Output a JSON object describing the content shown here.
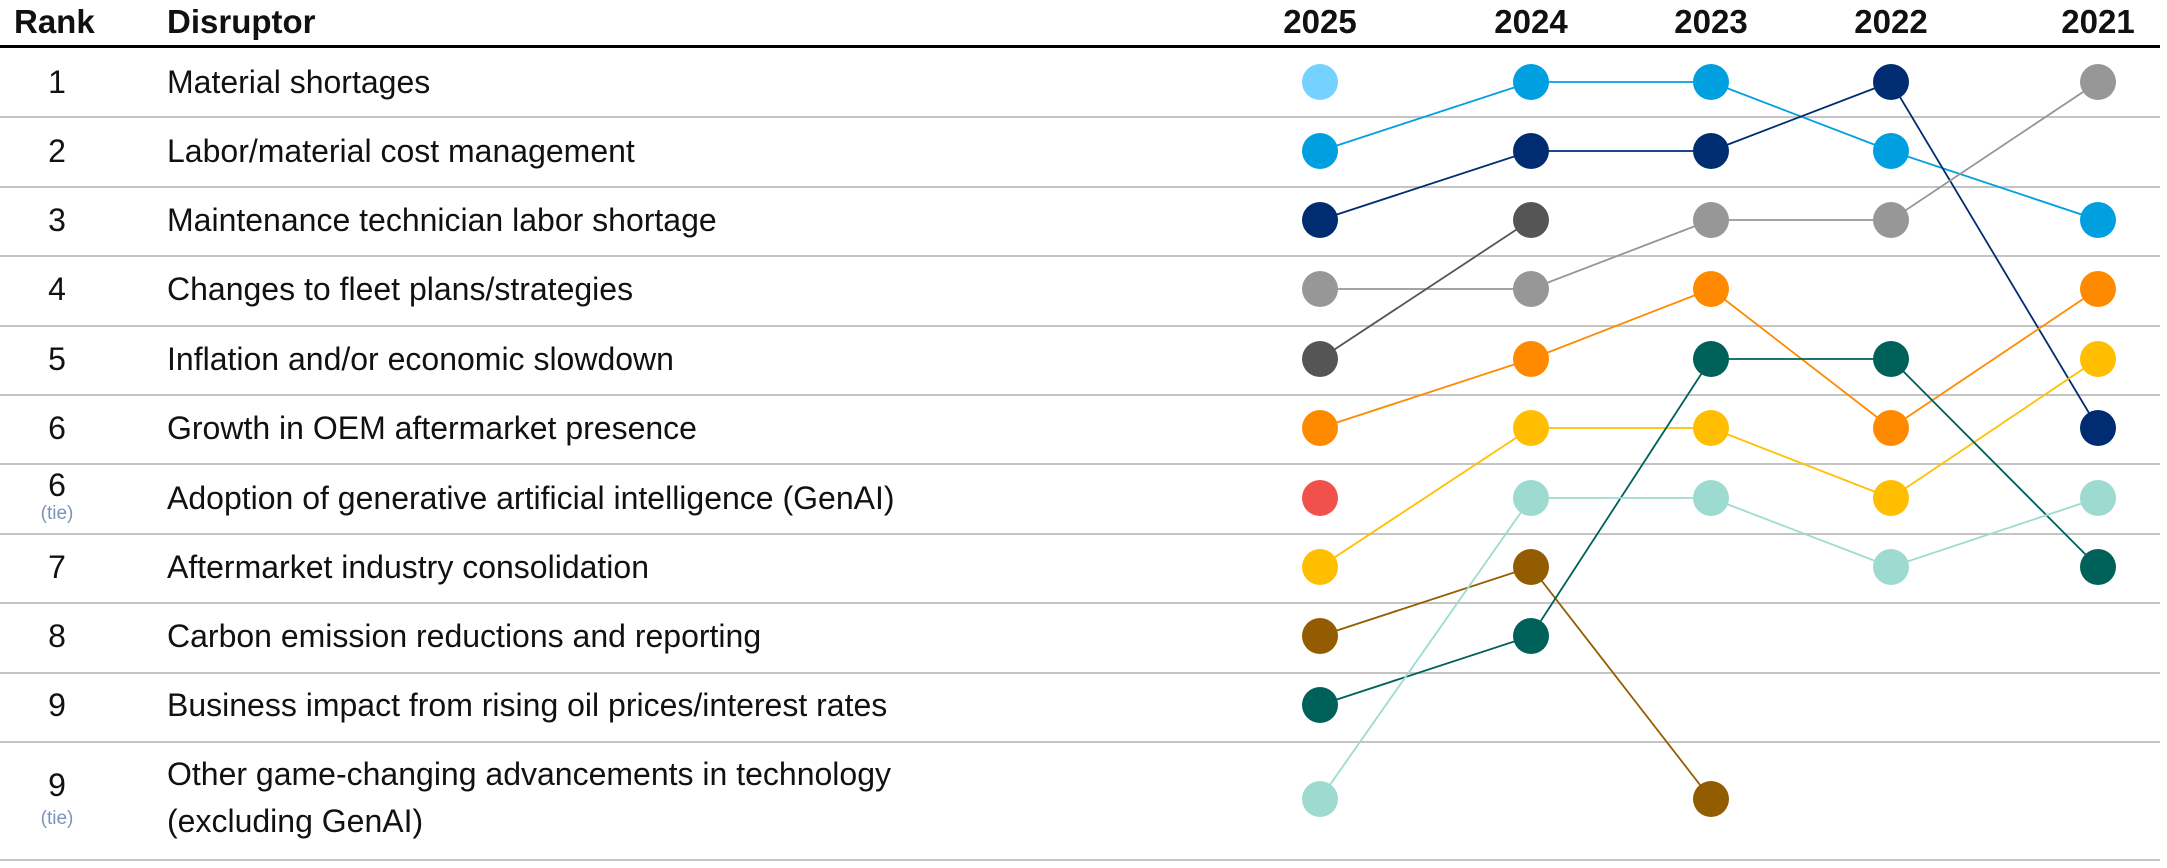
{
  "header": {
    "rank": "Rank",
    "disruptor": "Disruptor"
  },
  "rows": [
    {
      "rank": "1",
      "tie": "",
      "label": "Material shortages"
    },
    {
      "rank": "2",
      "tie": "",
      "label": "Labor/material cost management"
    },
    {
      "rank": "3",
      "tie": "",
      "label": "Maintenance technician labor shortage"
    },
    {
      "rank": "4",
      "tie": "",
      "label": "Changes to fleet plans/strategies"
    },
    {
      "rank": "5",
      "tie": "",
      "label": "Inflation and/or economic slowdown"
    },
    {
      "rank": "6",
      "tie": "",
      "label": "Growth in OEM aftermarket presence"
    },
    {
      "rank": "6",
      "tie": "(tie)",
      "label": "Adoption of generative artificial intelligence (GenAI)"
    },
    {
      "rank": "7",
      "tie": "",
      "label": "Aftermarket industry consolidation"
    },
    {
      "rank": "8",
      "tie": "",
      "label": "Carbon emission reductions and reporting"
    },
    {
      "rank": "9",
      "tie": "",
      "label": "Business impact from rising oil prices/interest rates"
    },
    {
      "rank": "9",
      "tie": "(tie)",
      "label": "Other game-changing advancements in technology",
      "label2": "(excluding GenAI)"
    }
  ],
  "chart_data": {
    "type": "bump",
    "years": [
      "2025",
      "2024",
      "2023",
      "2022",
      "2021"
    ],
    "position_note_units": "row in 2025 ranking table (1 = top row, 11 = bottom row); null = not ranked",
    "series": [
      {
        "disruptor": "Material shortages",
        "color": "#75D1FF",
        "positions": [
          1,
          null,
          null,
          null,
          null
        ]
      },
      {
        "disruptor": "Labor/material cost management",
        "color": "#009FE0",
        "positions": [
          2,
          1,
          1,
          2,
          3
        ]
      },
      {
        "disruptor": "Maintenance technician labor shortage",
        "color": "#002D72",
        "positions": [
          3,
          2,
          2,
          1,
          6
        ]
      },
      {
        "disruptor": "Changes to fleet plans/strategies",
        "color": "#979797",
        "positions": [
          4,
          4,
          3,
          3,
          1
        ]
      },
      {
        "disruptor": "Inflation and/or economic slowdown",
        "color": "#555555",
        "positions": [
          5,
          3,
          null,
          null,
          null
        ]
      },
      {
        "disruptor": "Growth in OEM aftermarket presence",
        "color": "#FF8A00",
        "positions": [
          6,
          5,
          4,
          6,
          4
        ]
      },
      {
        "disruptor": "Adoption of generative artificial intelligence (GenAI)",
        "color": "#F0514A",
        "positions": [
          7,
          null,
          null,
          null,
          null
        ]
      },
      {
        "disruptor": "Aftermarket industry consolidation",
        "color": "#FFBF00",
        "positions": [
          8,
          6,
          6,
          7,
          5
        ]
      },
      {
        "disruptor": "Carbon emission reductions and reporting",
        "color": "#935C00",
        "positions": [
          9,
          8,
          11,
          null,
          null
        ]
      },
      {
        "disruptor": "Business impact from rising oil prices/interest rates",
        "color": "#00605A",
        "positions": [
          10,
          9,
          5,
          5,
          8
        ]
      },
      {
        "disruptor": "Other game-changing advancements in technology (excluding GenAI)",
        "color": "#9DDBD0",
        "positions": [
          11,
          7,
          7,
          8,
          7
        ]
      }
    ]
  }
}
